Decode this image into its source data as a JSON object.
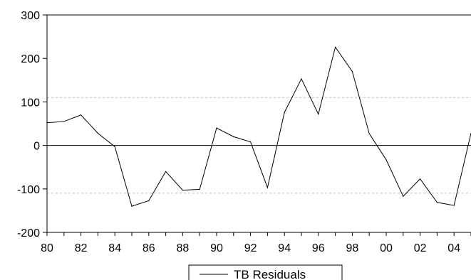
{
  "chart_data": {
    "type": "line",
    "title": "",
    "xlabel": "",
    "ylabel": "",
    "x": [
      1980,
      1981,
      1982,
      1983,
      1984,
      1985,
      1986,
      1987,
      1988,
      1989,
      1990,
      1991,
      1992,
      1993,
      1994,
      1995,
      1996,
      1997,
      1998,
      1999,
      2000,
      2001,
      2002,
      2003,
      2004,
      2005
    ],
    "series": [
      {
        "name": "TB Residuals",
        "color": "#000000",
        "values": [
          52,
          55,
          70,
          28,
          -3,
          -140,
          -127,
          -60,
          -103,
          -101,
          40,
          20,
          8,
          -97,
          76,
          153,
          72,
          226,
          170,
          27,
          -33,
          -117,
          -77,
          -131,
          -138,
          28
        ]
      }
    ],
    "x_ticks": [
      "80",
      "82",
      "84",
      "86",
      "88",
      "90",
      "92",
      "94",
      "96",
      "98",
      "00",
      "02",
      "04"
    ],
    "y_ticks": [
      "300",
      "200",
      "100",
      "0",
      "-100",
      "-200"
    ],
    "ylim": [
      -200,
      300
    ],
    "xlim": [
      1980,
      2005
    ],
    "grid": "dashed horizontal at +/-110 std. bands, solid zero line",
    "legend_position": "bottom-center"
  }
}
